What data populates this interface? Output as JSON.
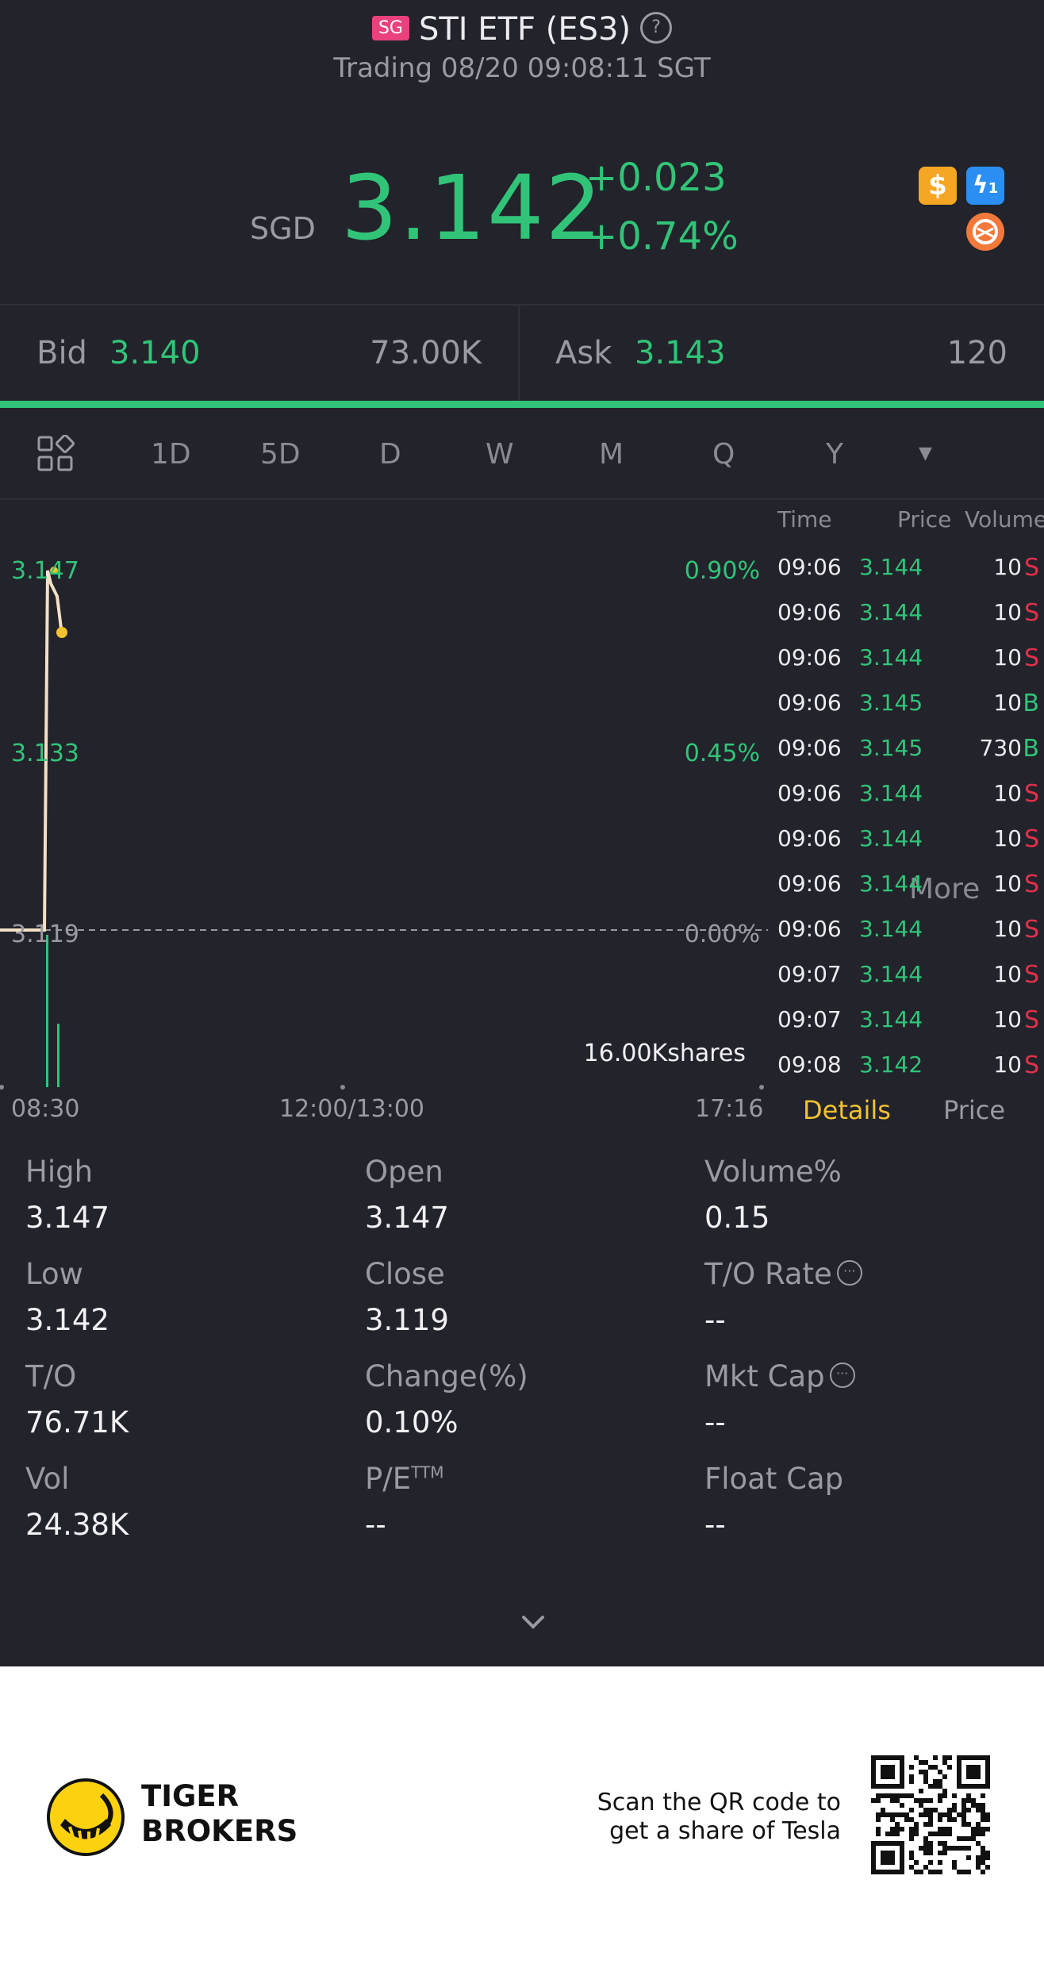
{
  "header": {
    "badge": "SG",
    "title": "STI ETF (ES3)",
    "status": "Trading 08/20 09:08:11 SGT"
  },
  "quote": {
    "currency": "SGD",
    "price": "3.142",
    "change": "+0.023",
    "change_pct": "+0.74%",
    "icon_dollar": "$",
    "icon_flash": "ϟ",
    "icon_flash_sub": "1"
  },
  "book": {
    "bid_label": "Bid",
    "bid_price": "3.140",
    "bid_size": "73.00K",
    "ask_label": "Ask",
    "ask_price": "3.143",
    "ask_size": "120"
  },
  "tabs": {
    "items": [
      "1D",
      "5D",
      "D",
      "W",
      "M",
      "Q",
      "Y"
    ],
    "more": "More",
    "active": "1D"
  },
  "chart_data": {
    "type": "line",
    "y_labels": [
      "3.147",
      "3.133",
      "3.119"
    ],
    "pct_labels": [
      "0.90%",
      "0.45%",
      "0.00%"
    ],
    "x_labels": [
      "08:30",
      "12:00/13:00",
      "17:16"
    ],
    "volume_label": "16.00Kshares",
    "price_line": [
      3.119,
      3.119,
      3.147,
      3.146,
      3.145,
      3.142
    ],
    "ylim": [
      3.105,
      3.16
    ]
  },
  "trades": {
    "headers": [
      "Time",
      "Price",
      "Volume"
    ],
    "rows": [
      {
        "time": "09:06",
        "price": "3.144",
        "vol": "10",
        "side": "S"
      },
      {
        "time": "09:06",
        "price": "3.144",
        "vol": "10",
        "side": "S"
      },
      {
        "time": "09:06",
        "price": "3.144",
        "vol": "10",
        "side": "S"
      },
      {
        "time": "09:06",
        "price": "3.145",
        "vol": "10",
        "side": "B"
      },
      {
        "time": "09:06",
        "price": "3.145",
        "vol": "730",
        "side": "B"
      },
      {
        "time": "09:06",
        "price": "3.144",
        "vol": "10",
        "side": "S"
      },
      {
        "time": "09:06",
        "price": "3.144",
        "vol": "10",
        "side": "S"
      },
      {
        "time": "09:06",
        "price": "3.144",
        "vol": "10",
        "side": "S"
      },
      {
        "time": "09:06",
        "price": "3.144",
        "vol": "10",
        "side": "S"
      },
      {
        "time": "09:07",
        "price": "3.144",
        "vol": "10",
        "side": "S"
      },
      {
        "time": "09:07",
        "price": "3.144",
        "vol": "10",
        "side": "S"
      },
      {
        "time": "09:08",
        "price": "3.142",
        "vol": "10",
        "side": "S"
      }
    ],
    "tab_details": "Details",
    "tab_price": "Price"
  },
  "stats": {
    "high_label": "High",
    "high": "3.147",
    "open_label": "Open",
    "open": "3.147",
    "volpct_label": "Volume%",
    "volpct": "0.15",
    "low_label": "Low",
    "low": "3.142",
    "close_label": "Close",
    "close": "3.119",
    "torate_label": "T/O Rate",
    "torate": "--",
    "to_label": "T/O",
    "to": "76.71K",
    "chgpct_label": "Change(%)",
    "chgpct": "0.10%",
    "mktcap_label": "Mkt Cap",
    "mktcap": "--",
    "vol_label": "Vol",
    "vol": "24.38K",
    "pe_label": "P/E",
    "pe_sup": "TTM",
    "pe": "--",
    "floatcap_label": "Float Cap",
    "floatcap": "--"
  },
  "footer": {
    "brand_line1": "TIGER",
    "brand_line2": "BROKERS",
    "promo_line1": "Scan the QR code to",
    "promo_line2": "get a share of Tesla"
  },
  "colors": {
    "background": "#22232b",
    "green": "#31c478",
    "red": "#e0314a",
    "yellow": "#f2c230",
    "brand_yellow": "#fcd20f"
  }
}
